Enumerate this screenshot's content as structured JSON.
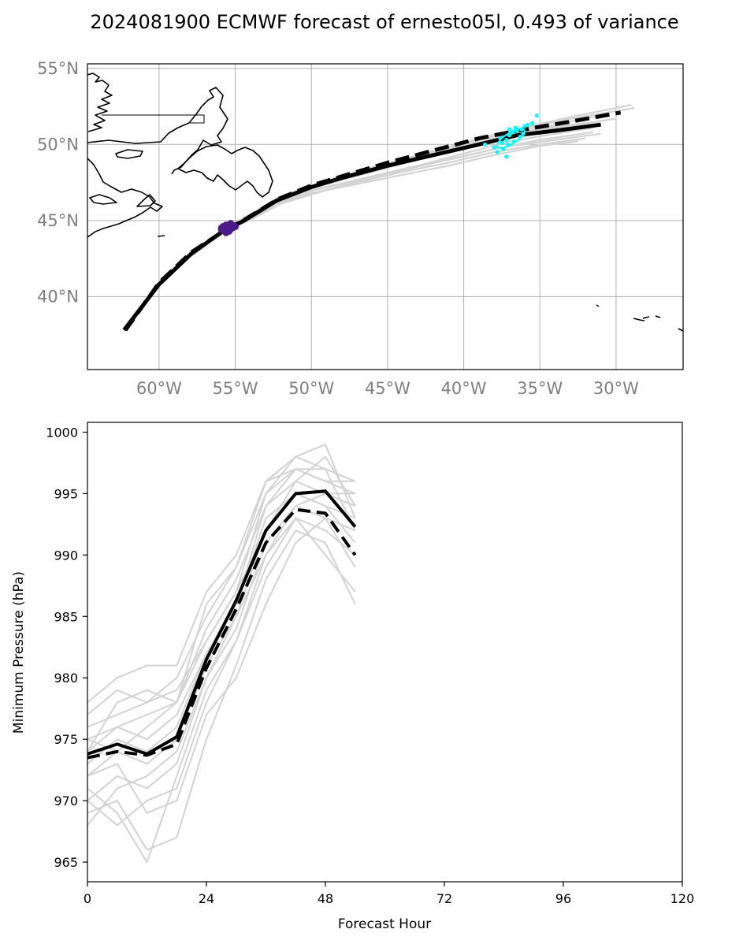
{
  "title": "2024081900 ECMWF forecast of ernesto05l, 0.493 of variance",
  "colors": {
    "ensemble": "#d3d3d3",
    "mean": "#000000",
    "start_marker": "#4b1a8c",
    "end_marker": "#00ffff",
    "coast": "#000000",
    "grid": "#b0b0b0",
    "map_tick_text": "#808080"
  },
  "chart_data": [
    {
      "type": "line",
      "subtype": "map-track",
      "title": "",
      "xlabel": "",
      "ylabel": "",
      "xlim": [
        -64.7,
        -25.6
      ],
      "ylim": [
        35.2,
        55.3
      ],
      "grid": true,
      "x_ticks": [
        -60,
        -55,
        -50,
        -45,
        -40,
        -35,
        -30
      ],
      "x_tick_labels": [
        "60°W",
        "55°W",
        "50°W",
        "45°W",
        "40°W",
        "35°W",
        "30°W"
      ],
      "y_ticks": [
        40,
        45,
        50,
        55
      ],
      "y_tick_labels": [
        "40°N",
        "45°N",
        "50°N",
        "55°N"
      ],
      "series": [
        {
          "style": "solid",
          "lon": [
            -62.3,
            -60.0,
            -57.9,
            -55.8,
            -54.4,
            -52.3,
            -50.0,
            -48.0,
            -45.0,
            -42.0,
            -39.0,
            -36.5,
            -34.0,
            -31.0
          ],
          "lat": [
            37.8,
            40.8,
            42.8,
            44.3,
            45.0,
            46.3,
            47.2,
            47.8,
            48.6,
            49.3,
            50.0,
            50.6,
            50.9,
            51.3
          ]
        },
        {
          "style": "dashed",
          "lon": [
            -62.2,
            -60.0,
            -57.9,
            -55.6,
            -54.3,
            -52.2,
            -50.0,
            -48.0,
            -45.0,
            -42.0,
            -39.0,
            -36.5,
            -33.0,
            -29.7
          ],
          "lat": [
            37.8,
            40.9,
            42.9,
            44.4,
            45.1,
            46.4,
            47.3,
            47.9,
            48.8,
            49.6,
            50.4,
            50.9,
            51.5,
            52.1
          ]
        }
      ],
      "ensemble": [
        {
          "lon": [
            -62.3,
            -60.0,
            -58.0,
            -55.8,
            -54.3,
            -52.0,
            -49.0,
            -46.0,
            -43.0,
            -40.0,
            -37.0,
            -34.0,
            -31.5
          ],
          "lat": [
            37.8,
            40.7,
            42.6,
            44.2,
            44.9,
            46.1,
            47.0,
            47.8,
            48.6,
            49.4,
            50.2,
            50.7,
            51.1
          ]
        },
        {
          "lon": [
            -62.2,
            -60.0,
            -57.9,
            -55.7,
            -54.2,
            -52.0,
            -49.0,
            -46.0,
            -43.0,
            -40.0,
            -37.0,
            -34.0,
            -30.5
          ],
          "lat": [
            37.9,
            40.9,
            42.9,
            44.4,
            45.2,
            46.4,
            47.4,
            48.2,
            49.0,
            49.8,
            50.7,
            51.3,
            52.0
          ]
        },
        {
          "lon": [
            -62.3,
            -60.0,
            -58.0,
            -55.8,
            -54.4,
            -52.2,
            -49.5,
            -47.0,
            -44.0,
            -41.0,
            -38.0,
            -35.0,
            -32.0
          ],
          "lat": [
            37.8,
            40.8,
            42.7,
            44.3,
            45.0,
            46.2,
            46.9,
            47.5,
            48.2,
            48.8,
            49.5,
            50.0,
            50.4
          ]
        },
        {
          "lon": [
            -62.2,
            -60.0,
            -57.8,
            -55.6,
            -54.2,
            -52.0,
            -49.0,
            -46.0,
            -43.0,
            -40.0,
            -37.0,
            -33.0,
            -29.0
          ],
          "lat": [
            37.9,
            41.0,
            43.0,
            44.5,
            45.3,
            46.6,
            47.6,
            48.5,
            49.3,
            50.1,
            50.9,
            51.8,
            52.6
          ]
        },
        {
          "lon": [
            -62.3,
            -60.0,
            -58.0,
            -55.8,
            -54.3,
            -52.1,
            -49.5,
            -46.5,
            -43.5,
            -40.5,
            -37.5,
            -34.0,
            -31.0
          ],
          "lat": [
            37.8,
            40.8,
            42.8,
            44.3,
            45.1,
            46.3,
            47.1,
            47.8,
            48.5,
            49.1,
            49.8,
            50.3,
            50.7
          ]
        },
        {
          "lon": [
            -62.2,
            -60.0,
            -57.9,
            -55.7,
            -54.2,
            -52.0,
            -49.0,
            -46.0,
            -43.0,
            -40.0,
            -37.0,
            -33.5,
            -28.8
          ],
          "lat": [
            37.9,
            40.9,
            42.9,
            44.4,
            45.2,
            46.5,
            47.5,
            48.4,
            49.2,
            50.0,
            50.8,
            51.6,
            52.4
          ]
        },
        {
          "lon": [
            -62.3,
            -60.0,
            -58.0,
            -55.8,
            -54.4,
            -52.3,
            -50.0,
            -47.0,
            -44.0,
            -41.0,
            -38.0,
            -35.0,
            -32.5
          ],
          "lat": [
            37.8,
            40.7,
            42.7,
            44.2,
            44.9,
            46.1,
            46.8,
            47.4,
            48.0,
            48.6,
            49.3,
            49.9,
            50.2
          ]
        },
        {
          "lon": [
            -62.2,
            -60.0,
            -57.9,
            -55.7,
            -54.3,
            -52.1,
            -49.5,
            -46.5,
            -43.5,
            -40.5,
            -37.5,
            -34.5,
            -30.0
          ],
          "lat": [
            37.9,
            40.9,
            42.8,
            44.4,
            45.1,
            46.4,
            47.3,
            48.1,
            48.9,
            49.6,
            50.4,
            51.0,
            51.7
          ]
        },
        {
          "lon": [
            -62.3,
            -60.0,
            -58.0,
            -55.8,
            -54.3,
            -52.2,
            -49.8,
            -47.0,
            -44.0,
            -41.0,
            -38.0,
            -35.0,
            -31.5
          ],
          "lat": [
            37.8,
            40.8,
            42.7,
            44.3,
            45.0,
            46.2,
            47.0,
            47.6,
            48.3,
            49.0,
            49.7,
            50.3,
            50.8
          ]
        },
        {
          "lon": [
            -62.2,
            -60.0,
            -57.8,
            -55.6,
            -54.2,
            -52.0,
            -49.0,
            -46.0,
            -43.0,
            -40.0,
            -37.0,
            -34.0,
            -31.0
          ],
          "lat": [
            37.9,
            41.0,
            43.0,
            44.5,
            45.3,
            46.5,
            47.5,
            48.3,
            49.1,
            49.9,
            50.6,
            51.2,
            51.5
          ]
        }
      ],
      "start_markers": {
        "lon": [
          -55.9,
          -55.6,
          -55.4,
          -55.2,
          -55.7,
          -55.5,
          -55.3,
          -55.8,
          -55.0,
          -55.6,
          -55.4,
          -55.2,
          -55.9,
          -55.5
        ],
        "lat": [
          44.5,
          44.7,
          44.6,
          44.5,
          44.3,
          44.4,
          44.8,
          44.6,
          44.6,
          44.2,
          44.3,
          44.7,
          44.4,
          44.6
        ]
      },
      "end_markers": {
        "lon": [
          -38.0,
          -37.5,
          -37.2,
          -37.0,
          -36.8,
          -36.5,
          -36.2,
          -36.0,
          -35.8,
          -35.5,
          -35.2,
          -37.8,
          -37.4,
          -37.1,
          -36.7,
          -36.3,
          -37.6,
          -37.0,
          -36.6,
          -36.1,
          -38.6,
          -37.2
        ],
        "lat": [
          49.8,
          50.1,
          50.3,
          50.6,
          50.8,
          50.9,
          51.0,
          51.2,
          51.3,
          51.4,
          51.9,
          49.5,
          49.7,
          50.0,
          50.2,
          50.5,
          50.4,
          51.0,
          51.1,
          50.7,
          50.0,
          49.2
        ]
      }
    },
    {
      "type": "line",
      "title": "",
      "xlabel": "Forecast Hour",
      "ylabel": "Minimum Pressure (hPa)",
      "xlim": [
        0,
        120
      ],
      "ylim": [
        963.4,
        1000.8
      ],
      "grid": false,
      "x_ticks": [
        0,
        24,
        48,
        72,
        96,
        120
      ],
      "y_ticks": [
        965,
        970,
        975,
        980,
        985,
        990,
        995,
        1000
      ],
      "x": [
        0,
        6,
        12,
        18,
        24,
        30,
        36,
        42,
        48,
        54
      ],
      "series": [
        {
          "style": "solid",
          "values": [
            973.8,
            974.6,
            973.8,
            975.2,
            981.5,
            986.3,
            992.0,
            995.0,
            995.2,
            992.3
          ]
        },
        {
          "style": "dashed",
          "values": [
            973.5,
            974.0,
            973.7,
            974.6,
            980.8,
            985.6,
            991.0,
            993.7,
            993.4,
            990.0
          ]
        }
      ],
      "ensemble": [
        [
          976,
          977,
          978,
          979,
          983,
          987,
          995,
          998,
          999,
          993
        ],
        [
          978,
          980,
          981,
          981,
          987,
          990,
          996,
          997,
          997,
          996
        ],
        [
          975,
          976,
          975,
          977,
          982,
          986,
          994,
          996,
          998,
          994
        ],
        [
          973,
          975,
          974,
          976,
          982,
          986,
          993,
          995,
          994,
          991
        ],
        [
          972,
          974,
          973,
          975,
          981,
          985,
          992,
          996,
          995,
          995
        ],
        [
          970,
          972,
          971,
          973,
          980,
          984,
          991,
          994,
          993,
          989
        ],
        [
          969,
          970,
          966,
          967,
          975,
          981,
          988,
          992,
          991,
          986
        ],
        [
          974,
          976,
          977,
          978,
          984,
          988,
          994,
          997,
          996,
          995
        ],
        [
          971,
          969,
          965,
          972,
          979,
          983,
          989,
          993,
          992,
          990
        ],
        [
          968,
          971,
          972,
          974,
          980,
          985,
          990,
          993,
          990,
          987
        ],
        [
          977,
          979,
          978,
          980,
          985,
          989,
          995,
          997,
          996,
          996
        ],
        [
          972,
          973,
          969,
          970,
          977,
          980,
          986,
          991,
          993,
          992
        ],
        [
          975,
          974,
          976,
          978,
          983,
          987,
          992,
          995,
          994,
          993
        ],
        [
          970,
          968,
          970,
          971,
          978,
          983,
          990,
          994,
          995,
          994
        ],
        [
          974,
          978,
          979,
          978,
          986,
          989,
          996,
          998,
          997,
          992
        ]
      ]
    }
  ]
}
